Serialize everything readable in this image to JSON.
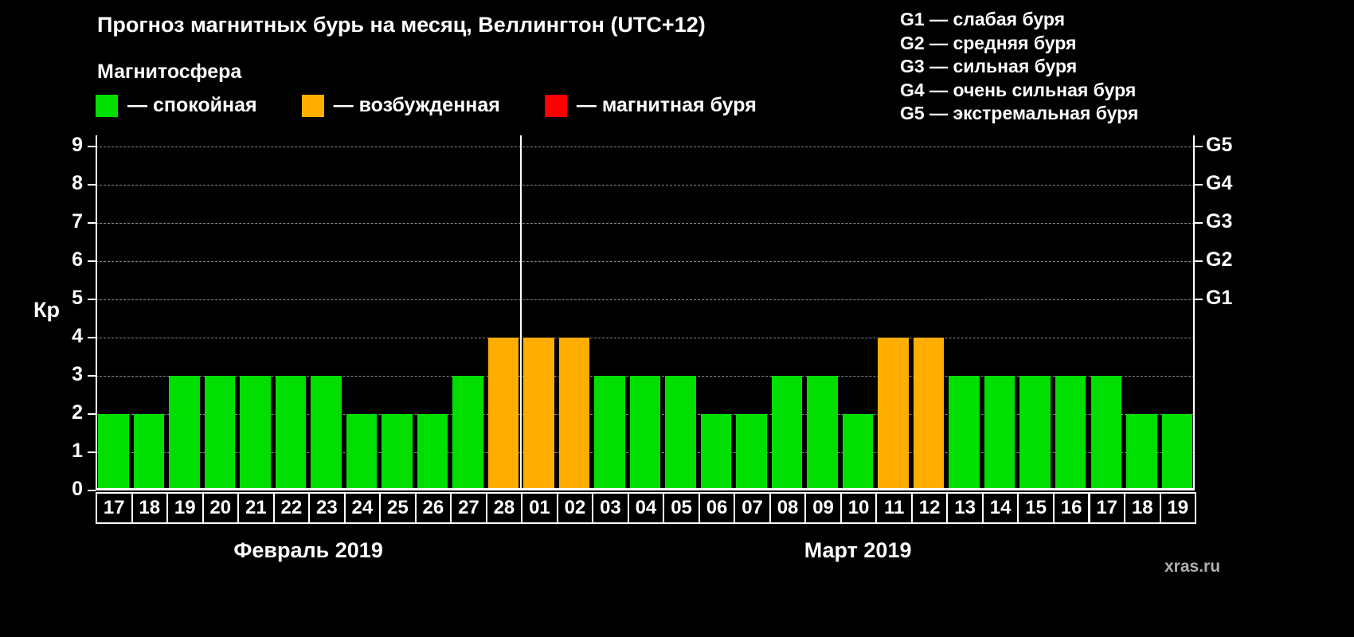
{
  "title": "Прогноз магнитных бурь на месяц, Веллингтон (UTC+12)",
  "subtitle": "Магнитосфера",
  "legend": {
    "items": [
      {
        "key": "quiet",
        "label": "— спокойная",
        "color": "#00df00"
      },
      {
        "key": "excited",
        "label": "— возбужденная",
        "color": "#ffae00"
      },
      {
        "key": "storm",
        "label": "— магнитная буря",
        "color": "#ff0000"
      }
    ]
  },
  "g_legend": [
    "G1 — слабая буря",
    "G2 — средняя буря",
    "G3 — сильная буря",
    "G4 — очень сильная буря",
    "G5 — экстремальная буря"
  ],
  "watermark": "xras.ru",
  "chart_data": {
    "type": "bar",
    "title": "Прогноз магнитных бурь на месяц, Веллингтон (UTC+12)",
    "ylabel": "Кр",
    "ylim": [
      0,
      9.3
    ],
    "yticks": [
      0,
      1,
      2,
      3,
      4,
      5,
      6,
      7,
      8,
      9
    ],
    "grid": true,
    "grid_color": "#8a8a8a",
    "right_axis": [
      {
        "label": "G1",
        "value": 5
      },
      {
        "label": "G2",
        "value": 6
      },
      {
        "label": "G3",
        "value": 7
      },
      {
        "label": "G4",
        "value": 8
      },
      {
        "label": "G5",
        "value": 9
      }
    ],
    "months": [
      {
        "label": "Февраль 2019",
        "start_index": 0,
        "count": 12
      },
      {
        "label": "Март 2019",
        "start_index": 12,
        "count": 19
      }
    ],
    "categories": [
      "17",
      "18",
      "19",
      "20",
      "21",
      "22",
      "23",
      "24",
      "25",
      "26",
      "27",
      "28",
      "01",
      "02",
      "03",
      "04",
      "05",
      "06",
      "07",
      "08",
      "09",
      "10",
      "11",
      "12",
      "13",
      "14",
      "15",
      "16",
      "17",
      "18",
      "19"
    ],
    "values": [
      2,
      2,
      3,
      3,
      3,
      3,
      3,
      2,
      2,
      2,
      3,
      4,
      4,
      4,
      3,
      3,
      3,
      2,
      2,
      3,
      3,
      2,
      4,
      4,
      3,
      3,
      3,
      3,
      3,
      2,
      2
    ],
    "color_rule": "Kp<4 quiet(green), Kp=4 excited(orange), Kp>=5 storm(red)"
  }
}
